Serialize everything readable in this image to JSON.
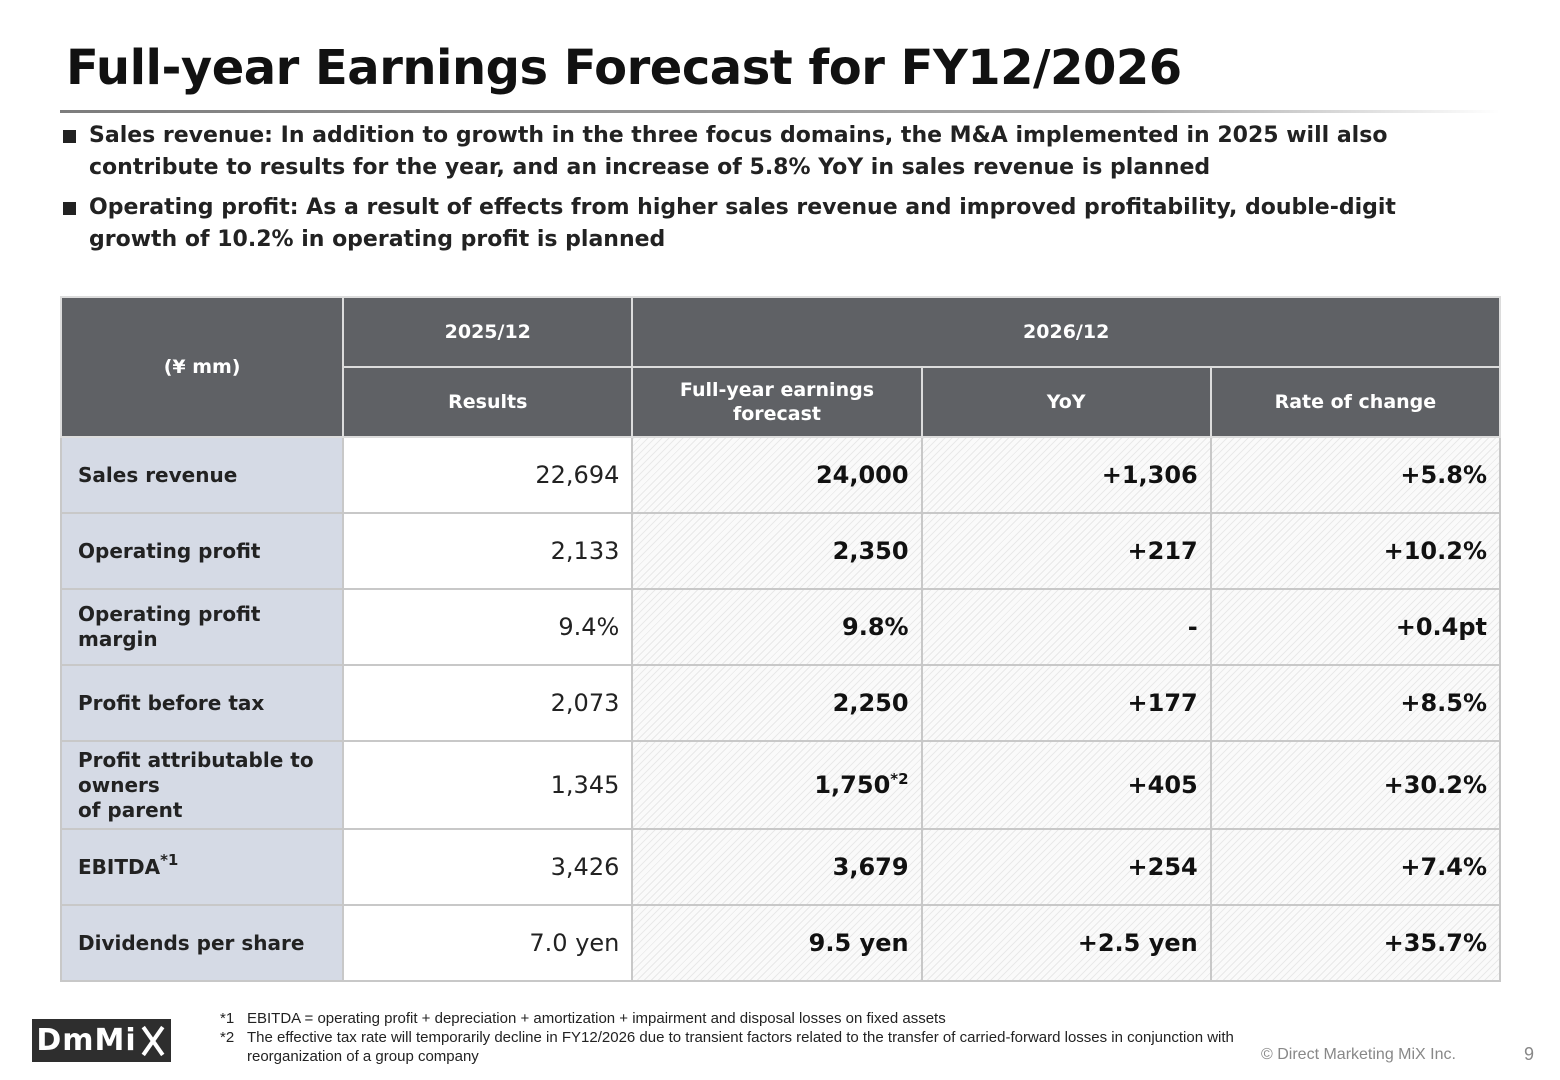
{
  "title": "Full-year Earnings Forecast for FY12/2026",
  "bullets": [
    {
      "line1": "Sales revenue: In addition to growth in the three focus domains, the M&A implemented in 2025 will also",
      "line2": "contribute to results for the year, and an increase of 5.8% YoY in sales revenue is planned"
    },
    {
      "line1": "Operating profit: As a result of effects from higher sales revenue and improved profitability, double-digit",
      "line2": "growth of 10.2% in operating profit is planned"
    }
  ],
  "table": {
    "unit": "(¥ mm)",
    "period_prev": "2025/12",
    "period_next": "2026/12",
    "col_results": "Results",
    "col_forecast_1": "Full-year earnings",
    "col_forecast_2": "forecast",
    "col_yoy": "YoY",
    "col_rate": "Rate of change",
    "rows": [
      {
        "label": "Sales revenue",
        "results": "22,694",
        "forecast": "24,000",
        "yoy": "+1,306",
        "rate": "+5.8%"
      },
      {
        "label": "Operating profit",
        "results": "2,133",
        "forecast": "2,350",
        "yoy": "+217",
        "rate": "+10.2%"
      },
      {
        "label_1": "Operating profit",
        "label_2": "margin",
        "results": "9.4%",
        "forecast": "9.8%",
        "yoy": "-",
        "rate": "+0.4pt"
      },
      {
        "label": "Profit before tax",
        "results": "2,073",
        "forecast": "2,250",
        "yoy": "+177",
        "rate": "+8.5%"
      },
      {
        "label_1": "Profit attributable to",
        "label_2": "owners",
        "label_3": "of parent",
        "results": "1,345",
        "forecast": "1,750",
        "forecast_note": "*2",
        "yoy": "+405",
        "rate": "+30.2%"
      },
      {
        "label": "EBITDA",
        "label_note": "*1",
        "results": "3,426",
        "forecast": "3,679",
        "yoy": "+254",
        "rate": "+7.4%"
      },
      {
        "label": "Dividends per share",
        "results": "7.0 yen",
        "forecast": "9.5 yen",
        "yoy": "+2.5 yen",
        "rate": "+35.7%"
      }
    ]
  },
  "notes": [
    {
      "mark": "*1",
      "text": "EBITDA = operating profit + depreciation + amortization + impairment and disposal losses on fixed assets"
    },
    {
      "mark": "*2",
      "line1": "The effective tax rate will temporarily decline in FY12/2026 due to transient factors related to the transfer of carried-forward losses in conjunction with",
      "line2": "reorganization of a group company"
    }
  ],
  "footer": {
    "logo_text": "DmMi",
    "copyright": "© Direct Marketing MiX Inc.",
    "page_number": "9"
  }
}
